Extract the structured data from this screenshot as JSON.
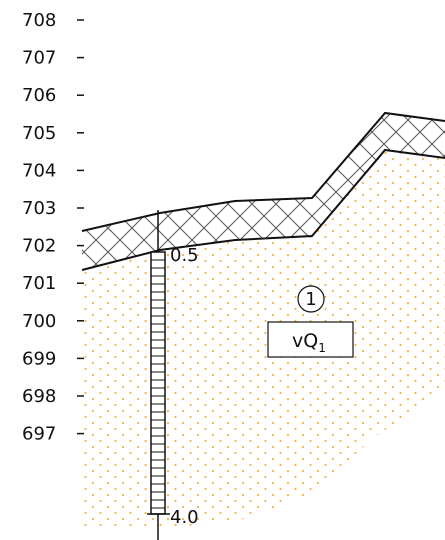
{
  "elevation_axis": {
    "ticks": [
      "708",
      "707",
      "706",
      "705",
      "704",
      "703",
      "702",
      "701",
      "700",
      "699",
      "698",
      "697"
    ]
  },
  "borehole": {
    "depth_top_label": "0.5",
    "depth_bottom_label": "4.0"
  },
  "layer": {
    "number": "1",
    "code_main": "vQ",
    "code_sub": "1"
  },
  "colors": {
    "dots": "#f5a623",
    "lines": "#111111",
    "hatch": "#555555"
  }
}
